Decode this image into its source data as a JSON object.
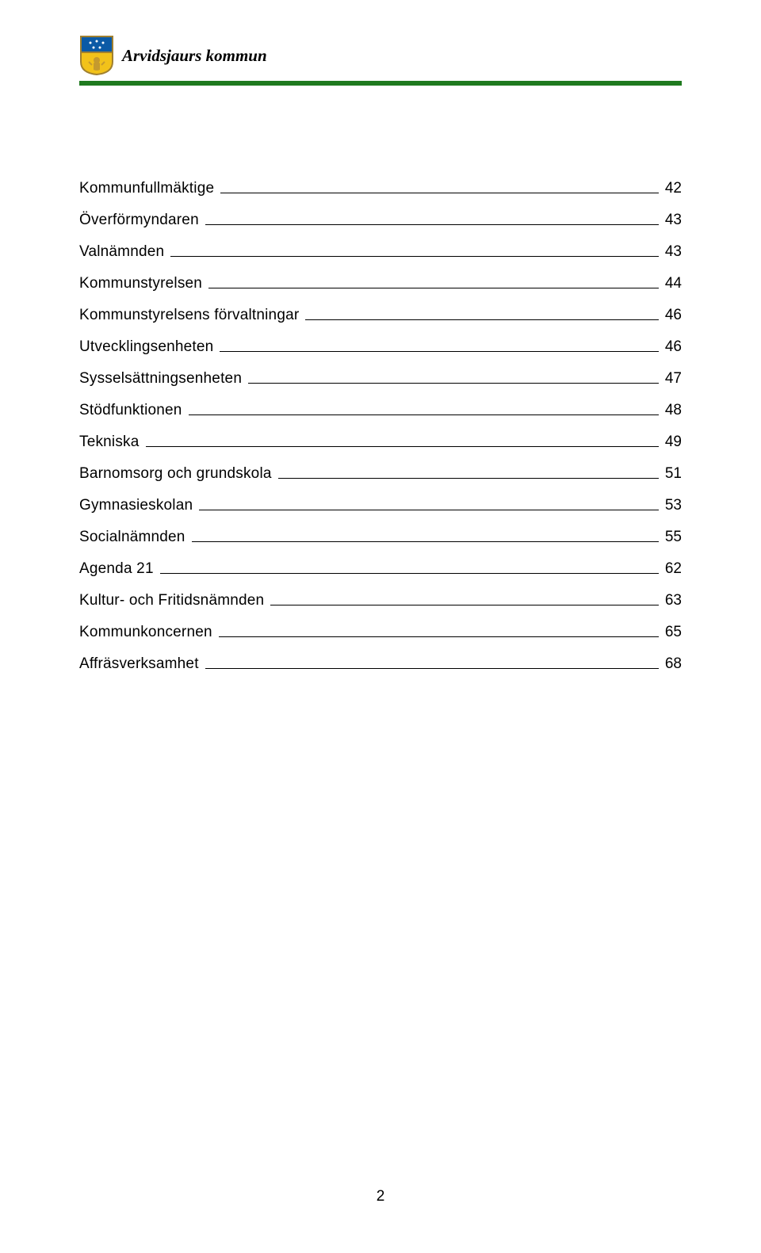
{
  "header": {
    "title": "Arvidsjaurs kommun",
    "rule_color": "#1f7a1f",
    "logo": {
      "shield_border": "#a08030",
      "shield_top": "#0b5aa6",
      "shield_bottom": "#f2c21a",
      "figure_color": "#c59a2e"
    }
  },
  "toc": {
    "items": [
      {
        "label": "Kommunfullmäktige",
        "page": "42"
      },
      {
        "label": "Överförmyndaren",
        "page": "43"
      },
      {
        "label": "Valnämnden",
        "page": "43"
      },
      {
        "label": "Kommunstyrelsen",
        "page": "44"
      },
      {
        "label": "Kommunstyrelsens förvaltningar",
        "page": "46"
      },
      {
        "label": "Utvecklingsenheten",
        "page": "46"
      },
      {
        "label": "Sysselsättningsenheten",
        "page": "47"
      },
      {
        "label": "Stödfunktionen",
        "page": "48"
      },
      {
        "label": "Tekniska",
        "page": "49"
      },
      {
        "label": "Barnomsorg och grundskola",
        "page": "51"
      },
      {
        "label": "Gymnasieskolan",
        "page": "53"
      },
      {
        "label": "Socialnämnden",
        "page": "55"
      },
      {
        "label": "Agenda 21",
        "page": "62"
      },
      {
        "label": "Kultur- och Fritidsnämnden",
        "page": "63"
      },
      {
        "label": "Kommunkoncernen",
        "page": "65"
      },
      {
        "label": "Affräsverksamhet",
        "page": "68"
      }
    ],
    "font_size": 19,
    "row_gap": 21
  },
  "footer": {
    "page_number": "2"
  },
  "style": {
    "background_color": "#ffffff",
    "text_color": "#000000"
  }
}
